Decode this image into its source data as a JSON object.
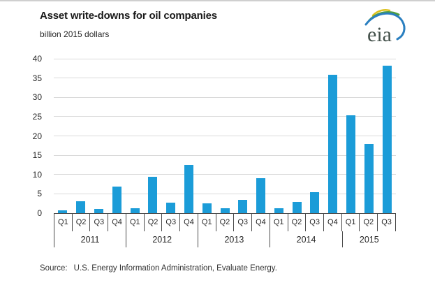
{
  "header": {
    "title": "Asset write-downs for oil companies",
    "subtitle": "billion 2015 dollars",
    "logo_text": "eia"
  },
  "footer": {
    "source_label": "Source:",
    "source_text": "U.S. Energy Information Administration, Evaluate Energy."
  },
  "colors": {
    "bar": "#1b9cd8",
    "gridline": "#d9d9d9",
    "axis": "#4a4a4a",
    "text": "#262626",
    "logo_blue": "#2a7fc0",
    "logo_green": "#4f9e3d",
    "logo_yellow": "#dcc11e",
    "logo_text_color": "#43504a"
  },
  "chart_data": {
    "type": "bar",
    "title": "Asset write-downs for oil companies",
    "ylabel": "billion 2015 dollars",
    "xlabel": "",
    "categories": [
      "2011 Q1",
      "2011 Q2",
      "2011 Q3",
      "2011 Q4",
      "2012 Q1",
      "2012 Q2",
      "2012 Q3",
      "2012 Q4",
      "2013 Q1",
      "2013 Q2",
      "2013 Q3",
      "2013 Q4",
      "2014 Q1",
      "2014 Q2",
      "2014 Q3",
      "2014 Q4",
      "2015 Q1",
      "2015 Q2",
      "2015 Q3"
    ],
    "values": [
      0.7,
      3.0,
      1.1,
      6.8,
      1.2,
      9.5,
      2.8,
      12.5,
      2.5,
      1.2,
      3.4,
      9.1,
      1.2,
      2.9,
      5.4,
      35.8,
      25.3,
      18.0,
      38.2
    ],
    "x_groups": [
      {
        "year": "2011",
        "quarters": [
          "Q1",
          "Q2",
          "Q3",
          "Q4"
        ]
      },
      {
        "year": "2012",
        "quarters": [
          "Q1",
          "Q2",
          "Q3",
          "Q4"
        ]
      },
      {
        "year": "2013",
        "quarters": [
          "Q1",
          "Q2",
          "Q3",
          "Q4"
        ]
      },
      {
        "year": "2014",
        "quarters": [
          "Q1",
          "Q2",
          "Q3",
          "Q4"
        ]
      },
      {
        "year": "2015",
        "quarters": [
          "Q1",
          "Q2",
          "Q3"
        ]
      }
    ],
    "ylim": [
      0,
      40
    ],
    "yticks": [
      0,
      5,
      10,
      15,
      20,
      25,
      30,
      35,
      40
    ],
    "grid": true,
    "legend_position": "none",
    "source": "U.S. Energy Information Administration, Evaluate Energy."
  }
}
